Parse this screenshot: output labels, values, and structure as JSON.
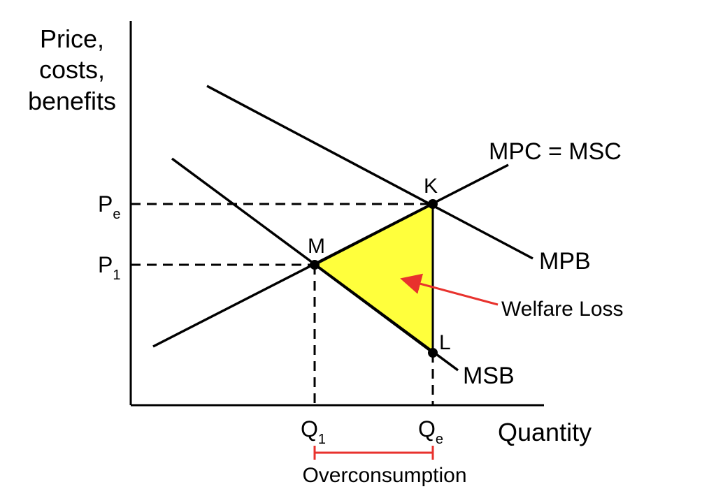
{
  "axes": {
    "y_title_lines": [
      "Price,",
      "costs,",
      "benefits"
    ],
    "x_title": "Quantity"
  },
  "curves": {
    "supply": "MPC = MSC",
    "private_benefit": "MPB",
    "social_benefit": "MSB"
  },
  "points": {
    "k": "K",
    "m": "M",
    "l": "L"
  },
  "prices": {
    "pe": {
      "main": "P",
      "sub": "e"
    },
    "p1": {
      "main": "P",
      "sub": "1"
    }
  },
  "quantities": {
    "q1": {
      "main": "Q",
      "sub": "1"
    },
    "qe": {
      "main": "Q",
      "sub": "e"
    }
  },
  "annotations": {
    "welfare_loss": "Welfare Loss",
    "overconsumption": "Overconsumption"
  },
  "colors": {
    "welfare_area": "#ffff3c",
    "arrow": "#e8322d",
    "bracket": "#e8322d",
    "lines": "#000000"
  }
}
